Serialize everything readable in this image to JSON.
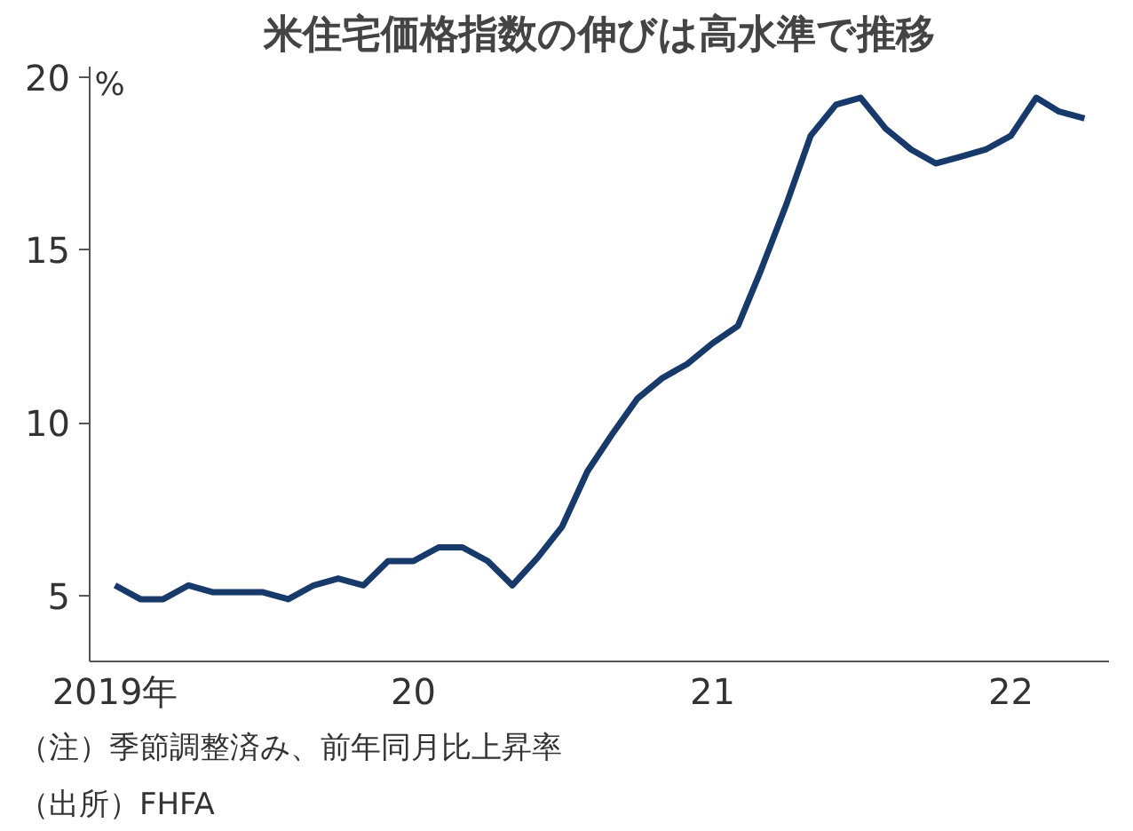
{
  "chart_data": {
    "type": "line",
    "title": "米住宅価格指数の伸びは高水準で推移",
    "ylabel": "%",
    "x": [
      "2019-01",
      "2019-02",
      "2019-03",
      "2019-04",
      "2019-05",
      "2019-06",
      "2019-07",
      "2019-08",
      "2019-09",
      "2019-10",
      "2019-11",
      "2019-12",
      "2020-01",
      "2020-02",
      "2020-03",
      "2020-04",
      "2020-05",
      "2020-06",
      "2020-07",
      "2020-08",
      "2020-09",
      "2020-10",
      "2020-11",
      "2020-12",
      "2021-01",
      "2021-02",
      "2021-03",
      "2021-04",
      "2021-05",
      "2021-06",
      "2021-07",
      "2021-08",
      "2021-09",
      "2021-10",
      "2021-11",
      "2021-12",
      "2022-01",
      "2022-02",
      "2022-03",
      "2022-04"
    ],
    "series": [
      {
        "color": "#173a6a",
        "values": [
          5.3,
          4.9,
          4.9,
          5.3,
          5.1,
          5.1,
          5.1,
          4.9,
          5.3,
          5.5,
          5.3,
          6.0,
          6.0,
          6.4,
          6.4,
          6.0,
          5.3,
          6.1,
          7.0,
          8.6,
          9.7,
          10.7,
          11.3,
          11.7,
          12.3,
          12.8,
          14.4,
          16.3,
          18.3,
          19.2,
          19.4,
          18.5,
          17.9,
          17.5,
          17.7,
          17.9,
          18.3,
          19.4,
          19.0,
          18.8
        ]
      }
    ],
    "xlim": [
      "2018-12",
      "2022-05"
    ],
    "xticks": [
      {
        "value": "2019-01",
        "label": "2019年"
      },
      {
        "value": "2020-01",
        "label": "20"
      },
      {
        "value": "2021-01",
        "label": "21"
      },
      {
        "value": "2022-01",
        "label": "22"
      }
    ],
    "ylim": [
      3.1,
      20.3
    ],
    "yticks": [
      5,
      10,
      15,
      20
    ],
    "grid": false,
    "line_style": "solid",
    "marker": "none",
    "annotations": [
      "（注）季節調整済み、前年同月比上昇率",
      "（出所）FHFA"
    ]
  }
}
